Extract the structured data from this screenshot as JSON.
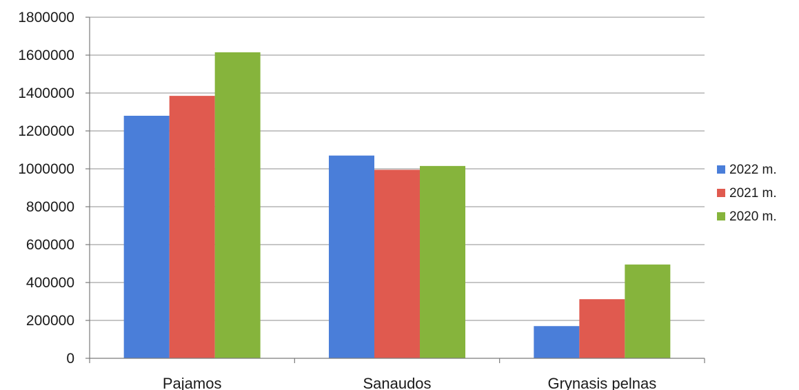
{
  "chart_data": {
    "type": "bar",
    "categories": [
      "Pajamos",
      "Sanaudos",
      "Grynasis pelnas"
    ],
    "series": [
      {
        "name": "2022 m.",
        "color": "#4a7ed9",
        "values": [
          1280000,
          1070000,
          170000
        ]
      },
      {
        "name": "2021 m.",
        "color": "#e05a4f",
        "values": [
          1385000,
          995000,
          312000
        ]
      },
      {
        "name": "2020 m.",
        "color": "#86b43c",
        "values": [
          1615000,
          1015000,
          495000
        ]
      }
    ],
    "y_ticks": [
      "0",
      "200000",
      "400000",
      "600000",
      "800000",
      "1000000",
      "1200000",
      "1400000",
      "1600000",
      "1800000"
    ],
    "ylim": [
      0,
      1800000
    ],
    "grid": true,
    "legend_position": "right"
  }
}
